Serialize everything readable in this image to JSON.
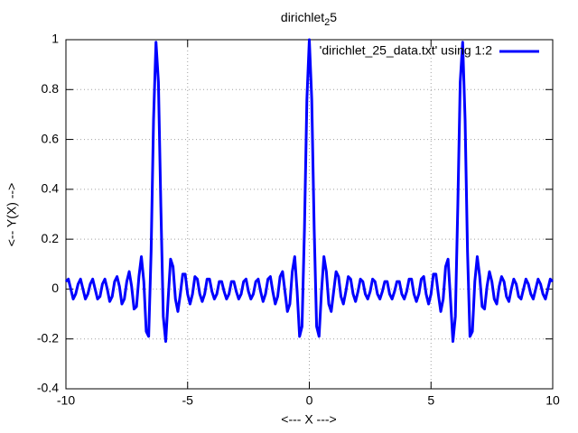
{
  "chart_data": {
    "type": "line",
    "title": [
      "dirichlet",
      "2",
      "5"
    ],
    "xlabel": "<--- X --->",
    "ylabel": "<-- Y(X) -->",
    "xlim": [
      -10,
      10
    ],
    "xticks": [
      -10,
      -5,
      0,
      5,
      10
    ],
    "ylim": [
      -0.4,
      1
    ],
    "yticks": [
      -0.4,
      -0.2,
      0,
      0.2,
      0.4,
      0.6,
      0.8,
      1
    ],
    "grid": true,
    "legend": "top-right",
    "x": [
      -10,
      -9.9,
      -9.8,
      -9.7,
      -9.6,
      -9.5,
      -9.4,
      -9.3,
      -9.2,
      -9.1,
      -9,
      -8.9,
      -8.8,
      -8.7,
      -8.6,
      -8.5,
      -8.4,
      -8.3,
      -8.2,
      -8.1,
      -8,
      -7.9,
      -7.8,
      -7.7,
      -7.6,
      -7.5,
      -7.4,
      -7.3,
      -7.2,
      -7.1,
      -7,
      -6.9,
      -6.8,
      -6.7,
      -6.6,
      -6.5,
      -6.4,
      -6.3,
      -6.2,
      -6.1,
      -6,
      -5.9,
      -5.8,
      -5.7,
      -5.6,
      -5.5,
      -5.4,
      -5.3,
      -5.2,
      -5.1,
      -5,
      -4.9,
      -4.8,
      -4.7,
      -4.6,
      -4.5,
      -4.4,
      -4.3,
      -4.2,
      -4.1,
      -4,
      -3.9,
      -3.8,
      -3.7,
      -3.6,
      -3.5,
      -3.4,
      -3.3,
      -3.2,
      -3.1,
      -3,
      -2.9,
      -2.8,
      -2.7,
      -2.6,
      -2.5,
      -2.4,
      -2.3,
      -2.2,
      -2.1,
      -2,
      -1.9,
      -1.8,
      -1.7,
      -1.6,
      -1.5,
      -1.4,
      -1.3,
      -1.2,
      -1.1,
      -1,
      -0.9,
      -0.8,
      -0.7,
      -0.6,
      -0.5,
      -0.4,
      -0.3,
      -0.2,
      -0.1,
      0,
      0.1,
      0.2,
      0.3,
      0.4,
      0.5,
      0.6,
      0.7,
      0.8,
      0.9,
      1,
      1.1,
      1.2,
      1.3,
      1.4,
      1.5,
      1.6,
      1.7,
      1.8,
      1.9,
      2,
      2.1,
      2.2,
      2.3,
      2.4,
      2.5,
      2.6,
      2.7,
      2.8,
      2.9,
      3,
      3.1,
      3.2,
      3.3,
      3.4,
      3.5,
      3.6,
      3.7,
      3.8,
      3.9,
      4,
      4.1,
      4.2,
      4.3,
      4.4,
      4.5,
      4.6,
      4.7,
      4.8,
      4.9,
      5,
      5.1,
      5.2,
      5.3,
      5.4,
      5.5,
      5.6,
      5.7,
      5.8,
      5.9,
      6,
      6.1,
      6.2,
      6.3,
      6.4,
      6.5,
      6.6,
      6.7,
      6.8,
      6.9,
      7,
      7.1,
      7.2,
      7.3,
      7.4,
      7.5,
      7.6,
      7.7,
      7.8,
      7.9,
      8,
      8.1,
      8.2,
      8.3,
      8.4,
      8.5,
      8.6,
      8.7,
      8.8,
      8.9,
      9,
      9.1,
      9.2,
      9.3,
      9.4,
      9.5,
      9.6,
      9.7,
      9.8,
      9.9,
      10
    ],
    "series": [
      {
        "name": "'dirichlet_25_data.txt' using 1:2",
        "color": "#0000ff",
        "values": [
          0.03,
          0.04,
          0,
          -0.04,
          -0.02,
          0.02,
          0.04,
          0,
          -0.04,
          -0.02,
          0.02,
          0.04,
          0,
          -0.04,
          -0.03,
          0.02,
          0.04,
          0,
          -0.05,
          -0.03,
          0.03,
          0.05,
          0.01,
          -0.06,
          -0.04,
          0.03,
          0.07,
          0.01,
          -0.08,
          -0.07,
          0.05,
          0.13,
          0.03,
          -0.17,
          -0.19,
          0.15,
          0.68,
          0.99,
          0.83,
          0.33,
          -0.11,
          -0.21,
          -0.04,
          0.12,
          0.09,
          -0.04,
          -0.09,
          -0.02,
          0.06,
          0.06,
          -0.02,
          -0.06,
          -0.02,
          0.05,
          0.04,
          -0.02,
          -0.05,
          -0.02,
          0.04,
          0.04,
          -0.01,
          -0.04,
          -0.02,
          0.03,
          0.03,
          -0.01,
          -0.04,
          -0.02,
          0.03,
          0.03,
          -0.01,
          -0.04,
          -0.02,
          0.03,
          0.04,
          -0.01,
          -0.04,
          -0.02,
          0.03,
          0.04,
          -0.01,
          -0.05,
          -0.02,
          0.04,
          0.05,
          -0.01,
          -0.06,
          -0.03,
          0.05,
          0.07,
          -0.01,
          -0.09,
          -0.06,
          0.07,
          0.13,
          -0.01,
          -0.19,
          -0.15,
          0.24,
          0.76,
          1,
          0.76,
          0.24,
          -0.15,
          -0.19,
          -0.01,
          0.13,
          0.07,
          -0.06,
          -0.09,
          -0.01,
          0.07,
          0.05,
          -0.03,
          -0.06,
          -0.01,
          0.05,
          0.04,
          -0.02,
          -0.05,
          -0.01,
          0.04,
          0.03,
          -0.02,
          -0.04,
          -0.01,
          0.04,
          0.03,
          -0.02,
          -0.04,
          -0.01,
          0.03,
          0.03,
          -0.02,
          -0.04,
          -0.01,
          0.03,
          0.03,
          -0.02,
          -0.04,
          -0.01,
          0.04,
          0.04,
          -0.02,
          -0.05,
          -0.02,
          0.04,
          0.05,
          -0.02,
          -0.06,
          -0.02,
          0.06,
          0.06,
          -0.02,
          -0.09,
          -0.04,
          0.09,
          0.12,
          -0.04,
          -0.21,
          -0.11,
          0.33,
          0.83,
          0.99,
          0.68,
          0.15,
          -0.19,
          -0.17,
          0.03,
          0.13,
          0.05,
          -0.07,
          -0.08,
          0.01,
          0.07,
          0.03,
          -0.04,
          -0.06,
          0.01,
          0.05,
          0.03,
          -0.03,
          -0.05,
          0,
          0.04,
          0.02,
          -0.03,
          -0.04,
          0,
          0.04,
          0.02,
          -0.02,
          -0.04,
          0,
          0.04,
          0.02,
          -0.02,
          -0.04,
          0,
          0.04,
          0.03
        ]
      }
    ]
  }
}
